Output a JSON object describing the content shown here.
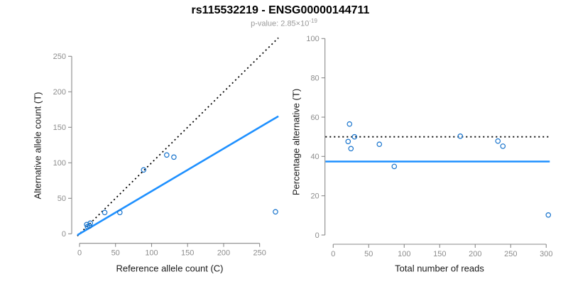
{
  "header": {
    "title": "rs115532219 - ENSG00000144711",
    "pvalue_label": "p-value: 2.85×10",
    "pvalue_exponent": "-19"
  },
  "colors": {
    "fit_line_blue": "#1E90FF",
    "point_blue": "#1874CD",
    "identity_line_black": "#000000",
    "axis_gray": "#8a8a8a",
    "tick_label_gray": "#8c8c8c"
  },
  "chart_data": [
    {
      "id": "allele-counts",
      "type": "scatter",
      "xlabel": "Reference allele count (C)",
      "ylabel": "Alternative allele count (T)",
      "xticks": [
        0,
        50,
        100,
        150,
        200,
        250
      ],
      "yticks": [
        0,
        50,
        100,
        150,
        200,
        250
      ],
      "xlim": [
        -11,
        283
      ],
      "ylim": [
        -11,
        283
      ],
      "line_span": [
        -3,
        276
      ],
      "points": [
        [
          10,
          13
        ],
        [
          15,
          15
        ],
        [
          11,
          10
        ],
        [
          14,
          11
        ],
        [
          35,
          30
        ],
        [
          56,
          30
        ],
        [
          89,
          90
        ],
        [
          121,
          111
        ],
        [
          131,
          108
        ],
        [
          272,
          31
        ]
      ],
      "lines": [
        {
          "name": "identity-line",
          "style": "dotted",
          "color_key": "identity_line_black",
          "kind": "slope",
          "slope": 1,
          "intercept": 0
        },
        {
          "name": "fitted-ratio-line",
          "style": "solid",
          "color_key": "fit_line_blue",
          "kind": "slope",
          "slope": 0.6,
          "intercept": 0
        }
      ]
    },
    {
      "id": "percentage-vs-reads",
      "type": "scatter",
      "xlabel": "Total number of reads",
      "ylabel": "Percentage alternative (T)",
      "xticks": [
        0,
        50,
        100,
        150,
        200,
        250,
        300
      ],
      "yticks": [
        0,
        20,
        40,
        60,
        80,
        100
      ],
      "xlim": [
        -12,
        317
      ],
      "ylim": [
        -4,
        104
      ],
      "line_span": [
        -11,
        305
      ],
      "points": [
        [
          23,
          56.5
        ],
        [
          30,
          50
        ],
        [
          21,
          47.6
        ],
        [
          25,
          44
        ],
        [
          65,
          46.2
        ],
        [
          86,
          34.9
        ],
        [
          179,
          50.3
        ],
        [
          232,
          47.8
        ],
        [
          239,
          45.2
        ],
        [
          303,
          10.2
        ]
      ],
      "lines": [
        {
          "name": "fifty-percent-line",
          "style": "dotted",
          "color_key": "identity_line_black",
          "kind": "h",
          "y": 50
        },
        {
          "name": "mean-percentage-line",
          "style": "solid",
          "color_key": "fit_line_blue",
          "kind": "h",
          "y": 37.4
        }
      ]
    }
  ]
}
